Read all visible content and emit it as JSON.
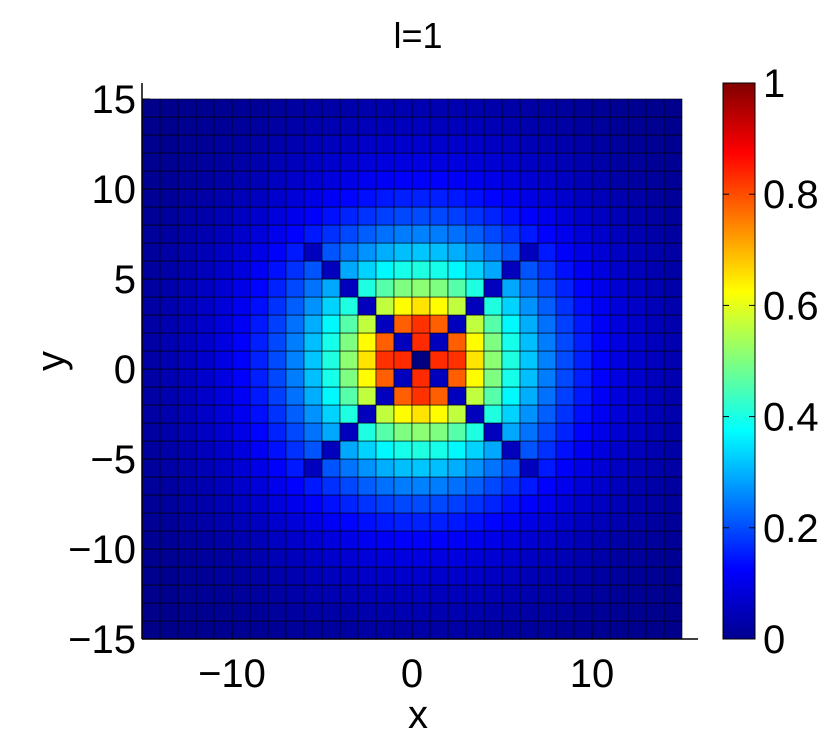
{
  "chart_data": {
    "type": "heatmap",
    "title": "l=1",
    "xlabel": "x",
    "ylabel": "y",
    "xlim": [
      -15,
      15
    ],
    "ylim": [
      -15,
      15
    ],
    "x_ticks": [
      -10,
      0,
      10
    ],
    "y_ticks": [
      -15,
      -10,
      -5,
      0,
      5,
      10,
      15
    ],
    "x_tick_labels": [
      "−10",
      "0",
      "10"
    ],
    "y_tick_labels": [
      "−15",
      "−10",
      "−5",
      "0",
      "5",
      "10",
      "15"
    ],
    "colormap": "jet",
    "colorbar": {
      "range": [
        0,
        1
      ],
      "ticks": [
        0,
        0.2,
        0.4,
        0.6,
        0.8,
        1
      ],
      "tick_labels": [
        "0",
        "0.2",
        "0.4",
        "0.6",
        "0.8",
        "1"
      ]
    },
    "grid_resolution": 1,
    "center": [
      0.5,
      0.5
    ],
    "intensity_model": "|m=1 lattice vortex| peak 1 at r≈1.2, decay ~exp(-(r-1.2)/4.2), zeros on diagonals",
    "grid": true
  }
}
